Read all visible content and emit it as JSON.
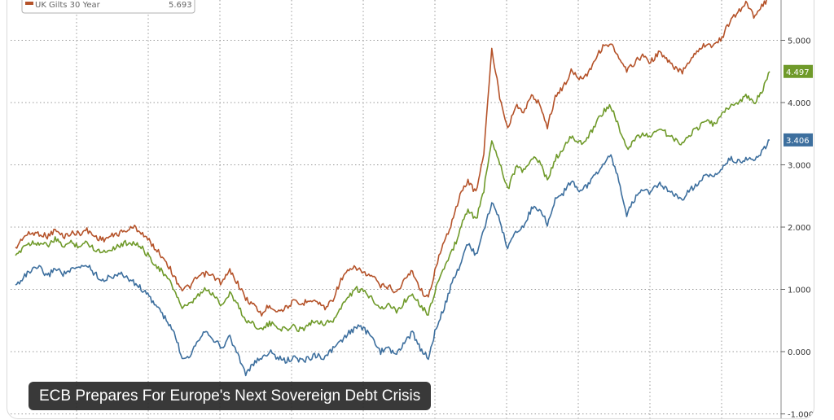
{
  "caption": "ECB Prepares For Europe's Next Sovereign Debt Crisis",
  "legend": {
    "label": "UK Gilts 30 Year",
    "value": "5.693"
  },
  "chart_data": {
    "type": "line",
    "title": "",
    "xlabel": "",
    "ylabel": "",
    "ylim": [
      -1.0,
      5.6
    ],
    "yticks": [
      -1.0,
      0.0,
      1.0,
      2.0,
      3.0,
      4.0,
      5.0
    ],
    "ytick_labels": [
      "-1.000",
      "0.000",
      "1.000",
      "2.000",
      "3.000",
      "4.000",
      "5.000"
    ],
    "grid": true,
    "series": [
      {
        "name": "UK Gilts 30 Year",
        "color": "#b5532a",
        "last_label": "",
        "values": [
          1.65,
          1.85,
          1.9,
          1.9,
          1.85,
          1.95,
          1.85,
          1.9,
          1.9,
          1.95,
          1.85,
          1.8,
          1.85,
          1.9,
          1.95,
          2.0,
          1.9,
          1.75,
          1.6,
          1.45,
          1.2,
          1.0,
          1.05,
          1.2,
          1.25,
          1.2,
          1.1,
          1.3,
          1.1,
          0.85,
          0.75,
          0.6,
          0.75,
          0.65,
          0.7,
          0.8,
          0.75,
          0.85,
          0.8,
          0.7,
          0.85,
          1.15,
          1.3,
          1.35,
          1.25,
          1.2,
          1.05,
          1.05,
          0.95,
          1.15,
          1.3,
          1.0,
          0.85,
          1.4,
          1.75,
          2.1,
          2.5,
          2.75,
          2.55,
          3.2,
          4.85,
          4.1,
          3.6,
          3.95,
          3.85,
          4.1,
          4.0,
          3.6,
          4.1,
          4.25,
          4.5,
          4.4,
          4.45,
          4.7,
          4.9,
          4.95,
          4.7,
          4.5,
          4.65,
          4.75,
          4.65,
          4.8,
          4.7,
          4.55,
          4.5,
          4.7,
          4.85,
          4.95,
          4.9,
          5.05,
          5.3,
          5.45,
          5.6,
          5.4,
          5.55,
          5.7
        ]
      },
      {
        "name": "",
        "color": "#6f9a2a",
        "last_label": "4.497",
        "values": [
          1.5,
          1.7,
          1.75,
          1.75,
          1.7,
          1.8,
          1.7,
          1.75,
          1.7,
          1.75,
          1.65,
          1.6,
          1.65,
          1.7,
          1.75,
          1.75,
          1.65,
          1.5,
          1.35,
          1.2,
          1.0,
          0.7,
          0.75,
          0.9,
          1.0,
          0.9,
          0.75,
          0.95,
          0.75,
          0.5,
          0.45,
          0.35,
          0.45,
          0.4,
          0.35,
          0.4,
          0.35,
          0.45,
          0.5,
          0.45,
          0.5,
          0.7,
          0.9,
          1.0,
          0.95,
          0.85,
          0.7,
          0.75,
          0.65,
          0.8,
          0.95,
          0.75,
          0.6,
          1.05,
          1.35,
          1.6,
          1.95,
          2.3,
          2.1,
          2.6,
          3.4,
          3.05,
          2.6,
          2.95,
          2.9,
          3.1,
          3.05,
          2.75,
          3.1,
          3.25,
          3.45,
          3.35,
          3.4,
          3.65,
          3.85,
          3.95,
          3.6,
          3.25,
          3.4,
          3.5,
          3.45,
          3.6,
          3.5,
          3.4,
          3.35,
          3.5,
          3.6,
          3.7,
          3.65,
          3.8,
          3.95,
          4.0,
          4.1,
          4.0,
          4.15,
          4.5
        ]
      },
      {
        "name": "",
        "color": "#3d6f9e",
        "last_label": "3.406",
        "values": [
          1.05,
          1.2,
          1.3,
          1.35,
          1.2,
          1.35,
          1.25,
          1.3,
          1.35,
          1.4,
          1.25,
          1.15,
          1.2,
          1.25,
          1.2,
          1.1,
          1.0,
          0.85,
          0.7,
          0.5,
          0.3,
          -0.1,
          -0.05,
          0.2,
          0.35,
          0.2,
          0.05,
          0.25,
          -0.05,
          -0.35,
          -0.2,
          -0.1,
          0.0,
          -0.1,
          -0.15,
          -0.1,
          -0.15,
          -0.1,
          -0.05,
          -0.1,
          0.05,
          0.15,
          0.3,
          0.4,
          0.35,
          0.2,
          0.0,
          0.05,
          -0.05,
          0.15,
          0.3,
          0.05,
          -0.1,
          0.4,
          0.7,
          1.1,
          1.4,
          1.75,
          1.55,
          1.95,
          2.4,
          2.1,
          1.65,
          1.95,
          2.0,
          2.3,
          2.3,
          2.05,
          2.45,
          2.55,
          2.75,
          2.6,
          2.65,
          2.85,
          3.0,
          3.15,
          2.75,
          2.2,
          2.45,
          2.6,
          2.55,
          2.7,
          2.6,
          2.5,
          2.45,
          2.6,
          2.7,
          2.85,
          2.8,
          2.95,
          3.1,
          3.05,
          3.1,
          3.05,
          3.2,
          3.4
        ]
      }
    ]
  }
}
